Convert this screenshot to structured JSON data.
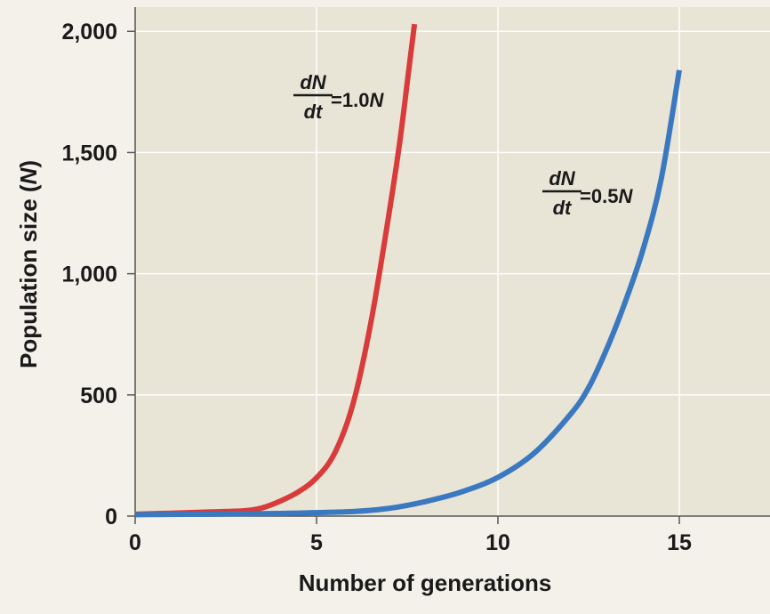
{
  "chart_data": {
    "type": "line",
    "title": "",
    "xlabel": "Number of generations",
    "ylabel_main": "Population size (",
    "ylabel_var": "N",
    "ylabel_close": ")",
    "xlim": [
      0,
      17.5
    ],
    "ylim": [
      0,
      2100
    ],
    "x_ticks": [
      0,
      5,
      10,
      15
    ],
    "x_tick_labels": [
      "0",
      "5",
      "10",
      "15"
    ],
    "y_ticks": [
      0,
      500,
      1000,
      1500,
      2000
    ],
    "y_tick_labels": [
      "0",
      "500",
      "1,000",
      "1,500",
      "2,000"
    ],
    "grid": true,
    "series": [
      {
        "name": "dN/dt = 1.0N",
        "color": "#d93a3a",
        "x": [
          0,
          1,
          2,
          3,
          3.5,
          4,
          4.5,
          5,
          5.5,
          6,
          6.5,
          7,
          7.3,
          7.55,
          7.7
        ],
        "y": [
          8,
          12,
          17,
          22,
          34,
          62,
          100,
          158,
          260,
          460,
          800,
          1250,
          1550,
          1850,
          2030
        ]
      },
      {
        "name": "dN/dt = 0.5N",
        "color": "#3a78c0",
        "x": [
          0,
          2,
          4,
          6,
          7,
          8,
          9,
          10,
          11,
          12,
          12.5,
          13,
          13.5,
          14,
          14.5,
          15
        ],
        "y": [
          6,
          8,
          11,
          19,
          32,
          60,
          100,
          160,
          260,
          420,
          530,
          690,
          880,
          1100,
          1390,
          1840
        ]
      }
    ],
    "annotations": [
      {
        "series": 0,
        "numerator": "dN",
        "denominator": "dt",
        "rhs_coef": "=1.0",
        "rhs_var": "N"
      },
      {
        "series": 1,
        "numerator": "dN",
        "denominator": "dt",
        "rhs_coef": "=0.5",
        "rhs_var": "N"
      }
    ],
    "colors": {
      "plot_bg": "#e8e4d6",
      "page_bg": "#f4f1ea",
      "grid": "#ffffff",
      "axis": "#555555"
    }
  }
}
